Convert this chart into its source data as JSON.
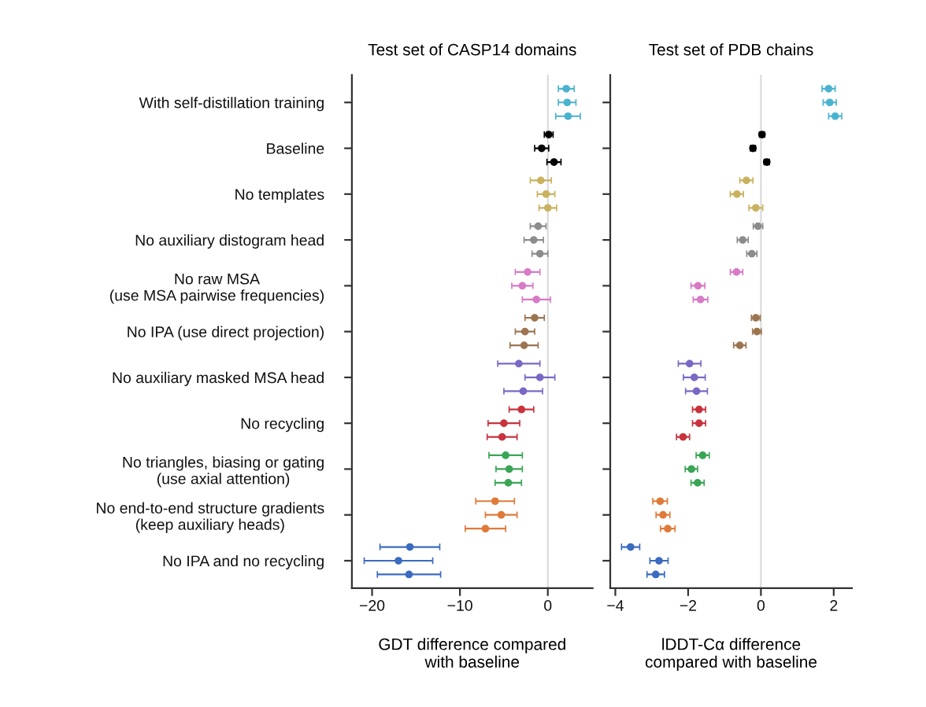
{
  "chart_data": [
    {
      "type": "scatter",
      "orientation": "horizontal",
      "title": "Test set of CASP14 domains",
      "xlabel": "GDT difference compared\nwith baseline",
      "categories": [
        "With self-distillation training",
        "Baseline",
        "No templates",
        "No auxiliary distogram head",
        "No raw MSA\n(use MSA pairwise frequencies)",
        "No IPA (use direct projection)",
        "No auxiliary masked MSA head",
        "No recycling",
        "No triangles, biasing or gating\n(use axial attention)",
        "No end-to-end structure gradients\n(keep auxiliary heads)",
        "No IPA and no recycling"
      ],
      "xlim": [
        -22.3,
        5.1
      ],
      "xticks": [
        {
          "value": -20,
          "label": "−20"
        },
        {
          "value": -10,
          "label": "−10"
        },
        0
      ],
      "marker": "circle",
      "grid": false,
      "legend": false,
      "ref_lines": [
        {
          "axis": "x",
          "value": 0,
          "color": "#d9d9d9"
        }
      ],
      "series": [
        {
          "values": [
            2.1,
            0.1,
            -0.8,
            -1.1,
            -2.3,
            -1.5,
            -3.3,
            -3.0,
            -4.8,
            -6.0,
            -15.7
          ],
          "errors": [
            0.9,
            0.5,
            1.2,
            0.9,
            1.4,
            1.1,
            2.4,
            1.4,
            1.9,
            2.2,
            3.4
          ],
          "colors": [
            "#4bb3d0",
            "#000000",
            "#c9b25f",
            "#8c8c8c",
            "#d87ac6",
            "#9b7550",
            "#7b68c4",
            "#c8333e",
            "#3aa655",
            "#e07a3a",
            "#3b6cc0"
          ]
        },
        {
          "values": [
            2.2,
            -0.7,
            -0.2,
            -1.6,
            -2.9,
            -2.6,
            -0.9,
            -5.0,
            -4.4,
            -5.3,
            -17.0
          ],
          "errors": [
            1.0,
            0.8,
            1.0,
            1.1,
            1.2,
            1.1,
            1.7,
            1.8,
            1.5,
            1.8,
            3.9
          ],
          "colors": [
            "#4bb3d0",
            "#000000",
            "#c9b25f",
            "#8c8c8c",
            "#d87ac6",
            "#9b7550",
            "#7b68c4",
            "#c8333e",
            "#3aa655",
            "#e07a3a",
            "#3b6cc0"
          ]
        },
        {
          "values": [
            2.3,
            0.7,
            0.0,
            -0.9,
            -1.3,
            -2.7,
            -2.8,
            -5.2,
            -4.5,
            -7.1,
            -15.8
          ],
          "errors": [
            1.4,
            0.8,
            1.0,
            0.9,
            1.6,
            1.6,
            2.2,
            1.7,
            1.5,
            2.3,
            3.6
          ],
          "colors": [
            "#4bb3d0",
            "#000000",
            "#c9b25f",
            "#8c8c8c",
            "#d87ac6",
            "#9b7550",
            "#7b68c4",
            "#c8333e",
            "#3aa655",
            "#e07a3a",
            "#3b6cc0"
          ]
        }
      ]
    },
    {
      "type": "scatter",
      "orientation": "horizontal",
      "title": "Test set of PDB chains",
      "xlabel": "lDDT-Cα difference\ncompared with baseline",
      "tick_labels": "x",
      "categories": [
        null,
        null,
        null,
        null,
        null,
        null,
        null,
        null,
        null,
        null,
        null
      ],
      "xlim": [
        -4.14,
        2.5
      ],
      "xticks": [
        {
          "value": -4,
          "label": "−4"
        },
        {
          "value": -2,
          "label": "−2"
        },
        0,
        2
      ],
      "marker": "circle",
      "grid": false,
      "legend": false,
      "ref_lines": [
        {
          "axis": "x",
          "value": 0,
          "color": "#d9d9d9"
        }
      ],
      "series": [
        {
          "values": [
            1.86,
            0.03,
            -0.4,
            -0.08,
            -0.67,
            -0.14,
            -1.96,
            -1.7,
            -1.6,
            -2.77,
            -3.58
          ],
          "errors": [
            0.18,
            0.07,
            0.18,
            0.13,
            0.17,
            0.12,
            0.31,
            0.18,
            0.18,
            0.2,
            0.25
          ],
          "colors": [
            "#4bb3d0",
            "#000000",
            "#c9b25f",
            "#8c8c8c",
            "#d87ac6",
            "#9b7550",
            "#7b68c4",
            "#c8333e",
            "#3aa655",
            "#e07a3a",
            "#3b6cc0"
          ]
        },
        {
          "values": [
            1.89,
            -0.22,
            -0.66,
            -0.5,
            -1.73,
            -0.11,
            -1.83,
            -1.7,
            -1.91,
            -2.69,
            -2.8
          ],
          "errors": [
            0.18,
            0.07,
            0.18,
            0.15,
            0.19,
            0.12,
            0.3,
            0.18,
            0.17,
            0.19,
            0.25
          ],
          "colors": [
            "#4bb3d0",
            "#000000",
            "#c9b25f",
            "#8c8c8c",
            "#d87ac6",
            "#9b7550",
            "#7b68c4",
            "#c8333e",
            "#3aa655",
            "#e07a3a",
            "#3b6cc0"
          ]
        },
        {
          "values": [
            2.04,
            0.16,
            -0.14,
            -0.25,
            -1.66,
            -0.58,
            -1.77,
            -2.14,
            -1.74,
            -2.56,
            -2.89
          ],
          "errors": [
            0.18,
            0.07,
            0.19,
            0.14,
            0.2,
            0.17,
            0.3,
            0.18,
            0.18,
            0.2,
            0.24
          ],
          "colors": [
            "#4bb3d0",
            "#000000",
            "#c9b25f",
            "#8c8c8c",
            "#d87ac6",
            "#9b7550",
            "#7b68c4",
            "#c8333e",
            "#3aa655",
            "#e07a3a",
            "#3b6cc0"
          ]
        }
      ]
    }
  ]
}
